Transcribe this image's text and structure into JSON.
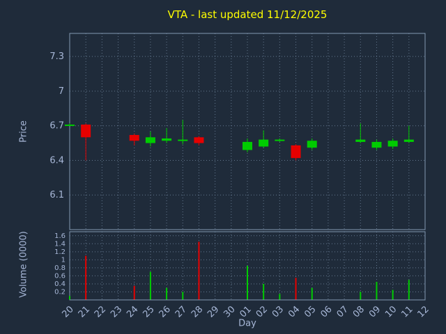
{
  "title": "VTA - last updated 11/12/2025",
  "axes": {
    "price_label": "Price",
    "volume_label": "Volume (0000)",
    "x_label": "Day"
  },
  "colors": {
    "up": "#00cc00",
    "down": "#e60000",
    "title": "#ffff00",
    "text": "#a7b7d7",
    "background": "#1f2b3a",
    "grid": "#64788f",
    "border": "#8398b3"
  },
  "chart_data": [
    {
      "type": "candlestick",
      "panel": "price",
      "title": "VTA - last updated 11/12/2025",
      "xlabel": "Day",
      "ylabel": "Price",
      "ylim": [
        5.8,
        7.5
      ],
      "ytick_values": [
        6.1,
        6.4,
        6.7,
        7.0,
        7.3
      ],
      "ytick_labels": [
        "6.1",
        "6.4",
        "6.7",
        "7",
        "7.3"
      ],
      "grid": true,
      "legend": "none",
      "categories": [
        "20",
        "21",
        "22",
        "23",
        "24",
        "25",
        "26",
        "27",
        "28",
        "29",
        "30",
        "01",
        "02",
        "03",
        "04",
        "05",
        "06",
        "07",
        "08",
        "09",
        "10",
        "11",
        "12"
      ],
      "candles": [
        {
          "day": "20",
          "open": 6.71,
          "high": 6.72,
          "low": 6.7,
          "close": 6.71
        },
        {
          "day": "21",
          "open": 6.71,
          "high": 6.72,
          "low": 6.4,
          "close": 6.6
        },
        {
          "day": "24",
          "open": 6.62,
          "high": 6.63,
          "low": 6.53,
          "close": 6.57
        },
        {
          "day": "25",
          "open": 6.55,
          "high": 6.65,
          "low": 6.52,
          "close": 6.6
        },
        {
          "day": "26",
          "open": 6.57,
          "high": 6.68,
          "low": 6.55,
          "close": 6.59
        },
        {
          "day": "27",
          "open": 6.57,
          "high": 6.75,
          "low": 6.54,
          "close": 6.58
        },
        {
          "day": "28",
          "open": 6.6,
          "high": 6.61,
          "low": 6.53,
          "close": 6.55
        },
        {
          "day": "01",
          "open": 6.49,
          "high": 6.59,
          "low": 6.47,
          "close": 6.56
        },
        {
          "day": "02",
          "open": 6.52,
          "high": 6.66,
          "low": 6.51,
          "close": 6.58
        },
        {
          "day": "03",
          "open": 6.57,
          "high": 6.59,
          "low": 6.56,
          "close": 6.58
        },
        {
          "day": "04",
          "open": 6.53,
          "high": 6.54,
          "low": 6.4,
          "close": 6.42
        },
        {
          "day": "05",
          "open": 6.51,
          "high": 6.59,
          "low": 6.49,
          "close": 6.57
        },
        {
          "day": "08",
          "open": 6.56,
          "high": 6.72,
          "low": 6.55,
          "close": 6.58
        },
        {
          "day": "09",
          "open": 6.51,
          "high": 6.58,
          "low": 6.49,
          "close": 6.56
        },
        {
          "day": "10",
          "open": 6.52,
          "high": 6.59,
          "low": 6.5,
          "close": 6.57
        },
        {
          "day": "11",
          "open": 6.56,
          "high": 6.7,
          "low": 6.55,
          "close": 6.58
        }
      ]
    },
    {
      "type": "bar",
      "panel": "volume",
      "ylabel": "Volume (0000)",
      "ylim": [
        0,
        1.7
      ],
      "ytick_values": [
        0.2,
        0.4,
        0.6,
        0.8,
        1.0,
        1.2,
        1.4,
        1.6
      ],
      "ytick_labels": [
        "0.2",
        "0.4",
        "0.6",
        "0.8",
        "1",
        "1.2",
        "1.4",
        "1.6"
      ],
      "grid": true,
      "legend": "none",
      "categories": [
        "20",
        "21",
        "22",
        "23",
        "24",
        "25",
        "26",
        "27",
        "28",
        "29",
        "30",
        "01",
        "02",
        "03",
        "04",
        "05",
        "06",
        "07",
        "08",
        "09",
        "10",
        "11",
        "12"
      ],
      "bars": [
        {
          "day": "20",
          "value": 0.1,
          "direction": "up"
        },
        {
          "day": "21",
          "value": 1.1,
          "direction": "down"
        },
        {
          "day": "24",
          "value": 0.35,
          "direction": "down"
        },
        {
          "day": "25",
          "value": 0.7,
          "direction": "up"
        },
        {
          "day": "26",
          "value": 0.3,
          "direction": "up"
        },
        {
          "day": "27",
          "value": 0.2,
          "direction": "up"
        },
        {
          "day": "28",
          "value": 1.45,
          "direction": "down"
        },
        {
          "day": "01",
          "value": 0.85,
          "direction": "up"
        },
        {
          "day": "02",
          "value": 0.4,
          "direction": "up"
        },
        {
          "day": "03",
          "value": 0.15,
          "direction": "up"
        },
        {
          "day": "04",
          "value": 0.55,
          "direction": "down"
        },
        {
          "day": "05",
          "value": 0.3,
          "direction": "up"
        },
        {
          "day": "08",
          "value": 0.2,
          "direction": "up"
        },
        {
          "day": "09",
          "value": 0.45,
          "direction": "up"
        },
        {
          "day": "10",
          "value": 0.25,
          "direction": "up"
        },
        {
          "day": "11",
          "value": 0.5,
          "direction": "up"
        }
      ]
    }
  ]
}
